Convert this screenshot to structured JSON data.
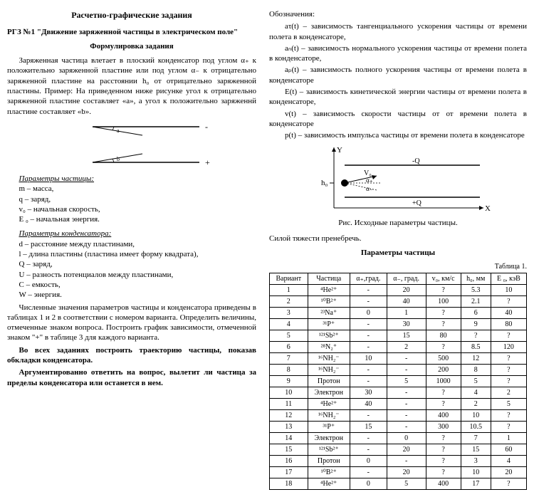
{
  "left": {
    "title": "Расчетно-графические задания",
    "rgz": "РГЗ №1  \"Движение заряженной частицы в электрическом поле\"",
    "form_title": "Формулировка задания",
    "intro1": "Заряженная частица влетает в плоский конденсатор под углом α₊ к положительно заряженной пластине или под углом α₋ к отрицательно заряженной пластине на расстоянии h₀ от отрицательно заряженной пластины.   Пример: На приведенном ниже рисунке угол к отрицательно заряженной пластине составляет «a», а угол к положительно заряженнй пластине составляет «b».",
    "params_p_title": "Параметры частицы:",
    "params_p": [
      "m – масса,",
      "q – заряд,",
      "v₀ – начальная скорость,",
      "E ₀ – начальная энергия."
    ],
    "params_c_title": "Параметры конденсатора:",
    "params_c": [
      "d – расстояние между пластинами,",
      "l – длина пластины (пластина имеет форму квадрата),",
      "Q – заряд,",
      "U – разность потенциалов между пластинами,",
      "C – емкость,",
      "W – энергия."
    ],
    "task1": "Численные значения параметров частицы и конденсатора приведены в таблицах 1 и 2 в соответствии с номером варианта. Определить величины, отмеченные знаком вопроса. Построить график зависимости, отмеченной знаком \"+\" в таблице 3 для каждого варианта.",
    "task2": "Во всех заданиях построить траекторию частицы, показав обкладки конденсатора.",
    "task3": "Аргументированно ответить на вопрос, вылетит ли частица за пределы конденсатора или останется в нем."
  },
  "right": {
    "oboz_title": "Обозначения:",
    "defs": [
      "aτ(t) – зависимость тангенциального ускорения частицы от времени полета в конденсаторе,",
      "aₙ(t) – зависимость нормального ускорения частицы от времени полета в конденсаторе,",
      "aₚ(t) – зависимость полного ускорения частицы от времени полета в конденсаторе",
      "E(t) – зависимость кинетической энергии частицы от времени полета в конденсаторе,",
      "v(t) – зависимость скорости частицы от от времени полета в конденсаторе",
      "p(t) – зависимость импульса частицы от времени полета в конденсаторе"
    ],
    "fig_caption": "Рис. Исходные параметры частицы.",
    "gravity_note": "Силой тяжести пренебречь.",
    "table_title": "Параметры частицы",
    "table_caption": "Таблица 1.",
    "table": {
      "columns": [
        "Вариант",
        "Частица",
        "α₊,град.",
        "α₋, град.",
        "v₀, км/с",
        "h₀, мм",
        "E ₀, кэВ"
      ],
      "rows": [
        [
          "1",
          "⁴He²⁺",
          "-",
          "20",
          "?",
          "5.3",
          "10"
        ],
        [
          "2",
          "¹⁰B²⁺",
          "-",
          "40",
          "100",
          "2.1",
          "?"
        ],
        [
          "3",
          "²³Na⁺",
          "0",
          "1",
          "?",
          "6",
          "40"
        ],
        [
          "4",
          "³¹P⁺",
          "-",
          "30",
          "?",
          "9",
          "80"
        ],
        [
          "5",
          "¹²¹Sb²⁺",
          "-",
          "15",
          "80",
          "?",
          "?"
        ],
        [
          "6",
          "²⁸N₂⁺",
          "-",
          "2",
          "?",
          "8.5",
          "120"
        ],
        [
          "7",
          "¹⁶NH₂⁻",
          "10",
          "-",
          "500",
          "12",
          "?"
        ],
        [
          "8",
          "¹⁶NH₂⁻",
          "-",
          "-",
          "200",
          "8",
          "?"
        ],
        [
          "9",
          "Протон",
          "-",
          "5",
          "1000",
          "5",
          "?"
        ],
        [
          "10",
          "Электрон",
          "30",
          "-",
          "?",
          "4",
          "2"
        ],
        [
          "11",
          "⁴He²⁺",
          "40",
          "-",
          "?",
          "2",
          "5"
        ],
        [
          "12",
          "¹⁶NH₂⁻",
          "-",
          "-",
          "400",
          "10",
          "?"
        ],
        [
          "13",
          "³¹P⁺",
          "15",
          "-",
          "300",
          "10.5",
          "?"
        ],
        [
          "14",
          "Электрон",
          "-",
          "0",
          "?",
          "7",
          "1"
        ],
        [
          "15",
          "¹²¹Sb²⁺",
          "-",
          "20",
          "?",
          "15",
          "60"
        ],
        [
          "16",
          "Протон",
          "0",
          "-",
          "?",
          "3",
          "4"
        ],
        [
          "17",
          "¹⁰B²⁺",
          "-",
          "20",
          "?",
          "10",
          "20"
        ],
        [
          "18",
          "⁴He²⁺",
          "0",
          "5",
          "400",
          "17",
          "?"
        ]
      ]
    }
  }
}
